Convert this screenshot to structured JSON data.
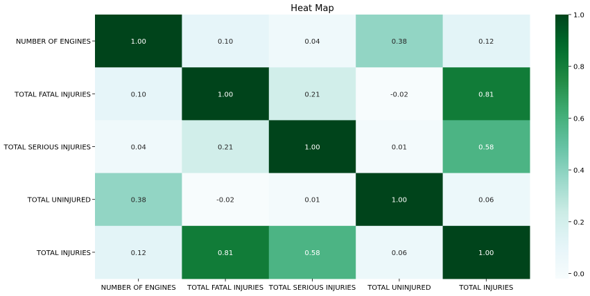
{
  "chart_data": {
    "type": "heatmap",
    "title": "Heat Map",
    "rows": [
      "NUMBER OF ENGINES",
      "TOTAL FATAL INJURIES",
      "TOTAL SERIOUS INJURIES",
      "TOTAL UNINJURED",
      "TOTAL INJURIES"
    ],
    "columns": [
      "NUMBER OF ENGINES",
      "TOTAL FATAL INJURIES",
      "TOTAL SERIOUS INJURIES",
      "TOTAL UNINJURED",
      "TOTAL INJURIES"
    ],
    "values": [
      [
        1.0,
        0.1,
        0.04,
        0.38,
        0.12
      ],
      [
        0.1,
        1.0,
        0.21,
        -0.02,
        0.81
      ],
      [
        0.04,
        0.21,
        1.0,
        0.01,
        0.58
      ],
      [
        0.38,
        -0.02,
        0.01,
        1.0,
        0.06
      ],
      [
        0.12,
        0.81,
        0.58,
        0.06,
        1.0
      ]
    ],
    "annotation_format": "0.00",
    "colormap": "greens",
    "color_range": [
      -0.02,
      1.0
    ],
    "colorbar_ticks": [
      "0.0",
      "0.2",
      "0.4",
      "0.6",
      "0.8",
      "1.0"
    ],
    "colorbar_tick_values": [
      0.0,
      0.2,
      0.4,
      0.6,
      0.8,
      1.0
    ],
    "colorbar_location": "right",
    "colors": {
      "low": "#f7fcfd",
      "mid": "#99d8c9",
      "high": "#00441b",
      "annotation_dark": "#262626",
      "annotation_light": "#ffffff"
    }
  }
}
